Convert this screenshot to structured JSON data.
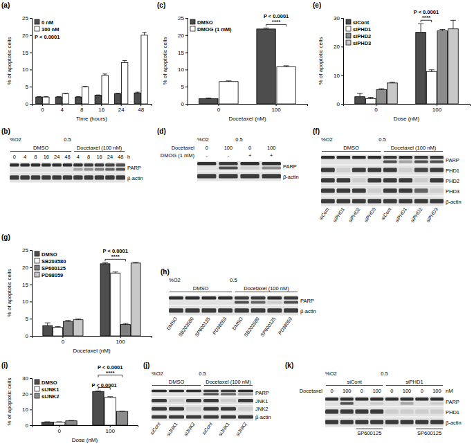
{
  "chart_data": [
    {
      "type": "bar",
      "panel": "(a)",
      "y_label": "% of apoptotic cells",
      "x_label": "Time (hours)",
      "categories": [
        0,
        4,
        8,
        16,
        24,
        48
      ],
      "series": [
        {
          "name": "0 nM",
          "color": "#4d4d4d",
          "values": [
            2,
            2,
            2,
            2.5,
            3,
            3.2
          ],
          "errors": [
            0.1,
            0.1,
            0.1,
            0.1,
            0.1,
            0.2
          ]
        },
        {
          "name": "100 nM",
          "color": "#ffffff",
          "values": [
            2,
            3,
            5,
            8.3,
            12,
            20
          ],
          "errors": [
            0.1,
            0.1,
            0.1,
            0.4,
            0.6,
            0.8
          ]
        }
      ],
      "ylim": [
        0,
        25
      ],
      "yticks": [
        0,
        5,
        10,
        15,
        20,
        25
      ],
      "legend": "top-left",
      "annotation": "P < 0.0001"
    },
    {
      "type": "bar",
      "panel": "(c)",
      "y_label": "% of apoptotic cells",
      "x_label": "Docetaxel (nM)",
      "categories": [
        0,
        100
      ],
      "series": [
        {
          "name": "DMSO",
          "color": "#4d4d4d",
          "values": [
            1.5,
            21.8
          ],
          "errors": [
            0.2,
            0.3
          ]
        },
        {
          "name": "DMOG (1 mM)",
          "color": "#ffffff",
          "values": [
            6.5,
            10.8
          ],
          "errors": [
            0.2,
            0.3
          ]
        }
      ],
      "ylim": [
        0,
        25
      ],
      "yticks": [
        0,
        5,
        10,
        15,
        20,
        25
      ],
      "legend": "top-left",
      "comparisons": [
        {
          "series": [
            "DMSO",
            "DMOG (1 mM)"
          ],
          "label": "P < 0.0001",
          "stars": "****"
        }
      ]
    },
    {
      "type": "bar",
      "panel": "(e)",
      "y_label": "% of apoptotic cells",
      "x_label": "Dose (nM)",
      "categories": [
        0,
        100
      ],
      "series": [
        {
          "name": "siCont",
          "color": "#4d4d4d",
          "values": [
            2.5,
            25
          ],
          "errors": [
            1.2,
            3
          ]
        },
        {
          "name": "siPHD1",
          "color": "#ffffff",
          "values": [
            1.8,
            11.3
          ],
          "errors": [
            0.5,
            0.6
          ]
        },
        {
          "name": "siPHD2",
          "color": "#8c8c8c",
          "values": [
            5,
            25.5
          ],
          "errors": [
            0.3,
            0.5
          ]
        },
        {
          "name": "siPHD3",
          "color": "#c8c8c8",
          "values": [
            7.3,
            26.2
          ],
          "errors": [
            0.3,
            3
          ]
        }
      ],
      "ylim": [
        0,
        30
      ],
      "yticks": [
        0,
        10,
        20,
        30
      ],
      "legend": "top-left",
      "comparisons": [
        {
          "series": [
            "siCont",
            "siPHD1"
          ],
          "label": "P < 0.0001",
          "stars": "****"
        }
      ]
    },
    {
      "type": "bar",
      "panel": "(g)",
      "y_label": "% of apoptotic cells",
      "x_label": "Docetaxel (nM)",
      "categories": [
        0,
        100
      ],
      "series": [
        {
          "name": "DMSO",
          "color": "#4d4d4d",
          "values": [
            3,
            21
          ],
          "errors": [
            0.8,
            0.3
          ]
        },
        {
          "name": "SB203580",
          "color": "#ffffff",
          "values": [
            2.5,
            18.3
          ],
          "errors": [
            0.2,
            0.3
          ]
        },
        {
          "name": "SP600125",
          "color": "#7f7f7f",
          "values": [
            4.2,
            3.3
          ],
          "errors": [
            0.3,
            0.3
          ]
        },
        {
          "name": "PD98059",
          "color": "#c8c8c8",
          "values": [
            4.7,
            21.2
          ],
          "errors": [
            0.2,
            0.2
          ]
        }
      ],
      "ylim": [
        0,
        25
      ],
      "yticks": [
        0,
        5,
        10,
        15,
        20,
        25
      ],
      "legend": "top-left",
      "comparisons": [
        {
          "series": [
            "DMSO",
            "SP600125"
          ],
          "label": "P < 0.0001",
          "stars": "****"
        }
      ]
    },
    {
      "type": "bar",
      "panel": "(i)",
      "y_label": "% of apoptotic cells",
      "x_label": "Dose (nM)",
      "categories": [
        0,
        100
      ],
      "series": [
        {
          "name": "DMSO",
          "color": "#4d4d4d",
          "values": [
            2,
            21.5
          ],
          "errors": [
            0.2,
            0.3
          ]
        },
        {
          "name": "siJNK1",
          "color": "#ffffff",
          "values": [
            2,
            17.7
          ],
          "errors": [
            0.2,
            0.5
          ]
        },
        {
          "name": "siJNK2",
          "color": "#8c8c8c",
          "values": [
            2.8,
            8.8
          ],
          "errors": [
            0.2,
            0.2
          ]
        }
      ],
      "ylim": [
        0,
        30
      ],
      "yticks": [
        0,
        10,
        20,
        30
      ],
      "legend": "top-left",
      "comparisons": [
        {
          "series": [
            "DMSO",
            "siJNK1"
          ],
          "label": "P < 0.0001"
        },
        {
          "series": [
            "DMSO",
            "siJNK2"
          ],
          "label": "P < 0.0001",
          "stars": "****"
        }
      ]
    }
  ],
  "blots": [
    {
      "panel": "(b)",
      "o2_label": "%O2",
      "o2_value": "0.5",
      "groups": [
        {
          "label": "DMSO",
          "lanes": 6
        },
        {
          "label": "Docetaxel (100 nM)",
          "lanes": 5
        }
      ],
      "lane_labels": [
        {
          "values": [
            "0",
            "4",
            "8",
            "16",
            "24",
            "48",
            "4",
            "8",
            "16",
            "24",
            "48"
          ],
          "unit": "h"
        }
      ],
      "rows": [
        {
          "protein": "PARP",
          "bands": [
            0.85,
            0.85,
            0.85,
            0.85,
            0.85,
            0.85,
            0.85,
            0.8,
            0.8,
            0.75,
            0.7
          ],
          "cleaved": [
            0,
            0,
            0,
            0,
            0,
            0,
            0.3,
            0.4,
            0.5,
            0.6,
            0.7
          ]
        },
        {
          "protein": "β-actin",
          "bands": [
            0.8,
            0.8,
            0.8,
            0.8,
            0.8,
            0.8,
            0.8,
            0.8,
            0.8,
            0.8,
            0.8
          ]
        }
      ]
    },
    {
      "panel": "(d)",
      "o2_label": "%O2",
      "o2_value": "0.5",
      "lane_labels": [
        {
          "label": "Docetaxel",
          "values": [
            "0",
            "100",
            "0",
            "100"
          ]
        },
        {
          "label": "DMOG (1 mM)",
          "values": [
            "-",
            "-",
            "+",
            "+"
          ]
        }
      ],
      "rows": [
        {
          "protein": "PARP",
          "bands": [
            0.85,
            0.8,
            0.85,
            0.85
          ],
          "cleaved": [
            0,
            0.7,
            0.1,
            0.4
          ]
        },
        {
          "protein": "β-actin",
          "bands": [
            0.8,
            0.8,
            0.8,
            0.8
          ]
        }
      ]
    },
    {
      "panel": "(f)",
      "o2_label": "%O2",
      "o2_value": "0.5",
      "groups": [
        {
          "label": "DMSO",
          "lanes": 4
        },
        {
          "label": "Docetaxel (100 nM)",
          "lanes": 4
        }
      ],
      "rows": [
        {
          "protein": "PARP",
          "bands": [
            0.85,
            0.85,
            0.85,
            0.85,
            0.8,
            0.85,
            0.8,
            0.8
          ],
          "cleaved": [
            0,
            0,
            0,
            0,
            0.7,
            0.3,
            0.7,
            0.7
          ]
        },
        {
          "protein": "PHD1",
          "bands": [
            0.8,
            0.1,
            0.8,
            0.8,
            0.8,
            0.1,
            0.75,
            0.8
          ]
        },
        {
          "protein": "PHD2",
          "bands": [
            0.8,
            0.8,
            0.1,
            0.8,
            0.8,
            0.8,
            0.1,
            0.8
          ]
        },
        {
          "protein": "PHD3",
          "bands": [
            0.8,
            0.8,
            0.8,
            0.1,
            0.8,
            0.8,
            0.6,
            0.1
          ]
        },
        {
          "protein": "β-actin",
          "bands": [
            0.8,
            0.8,
            0.8,
            0.8,
            0.8,
            0.8,
            0.8,
            0.8
          ]
        }
      ],
      "lane_names": [
        "siCont",
        "siPHD1",
        "siPHD2",
        "siPHD3",
        "siCont",
        "siPHD1",
        "siPHD2",
        "siPHD3"
      ]
    },
    {
      "panel": "(h)",
      "o2_label": "%O2",
      "o2_value": "0.5",
      "groups": [
        {
          "label": "DMSO",
          "lanes": 4
        },
        {
          "label": "Docetaxel (100 nM)",
          "lanes": 4
        }
      ],
      "rows": [
        {
          "protein": "PARP",
          "bands": [
            0.85,
            0.85,
            0.85,
            0.85,
            0.8,
            0.8,
            0.85,
            0.8
          ],
          "cleaved": [
            0,
            0,
            0,
            0,
            0.7,
            0.6,
            0.1,
            0.7
          ]
        },
        {
          "protein": "β-actin",
          "bands": [
            0.8,
            0.8,
            0.8,
            0.8,
            0.8,
            0.8,
            0.8,
            0.8
          ]
        }
      ],
      "lane_names": [
        "DMSO",
        "SB203580",
        "SP600125",
        "PD98059",
        "DMSO",
        "SB203580",
        "SP600125",
        "PD98059"
      ]
    },
    {
      "panel": "(j)",
      "o2_label": "%O2",
      "o2_value": "0.5",
      "groups": [
        {
          "label": "DMSO",
          "lanes": 3
        },
        {
          "label": "Docetaxel (100 nM)",
          "lanes": 3
        }
      ],
      "rows": [
        {
          "protein": "PARP",
          "bands": [
            0.85,
            0.85,
            0.85,
            0.8,
            0.8,
            0.85
          ],
          "cleaved": [
            0,
            0,
            0,
            0.7,
            0.6,
            0.3
          ]
        },
        {
          "protein": "JNK1",
          "bands": [
            0.8,
            0.1,
            0.8,
            0.8,
            0.1,
            0.8
          ]
        },
        {
          "protein": "JNK2",
          "bands": [
            0.8,
            0.8,
            0.1,
            0.8,
            0.8,
            0.1
          ]
        },
        {
          "protein": "β-actin",
          "bands": [
            0.8,
            0.8,
            0.8,
            0.8,
            0.8,
            0.8
          ]
        }
      ],
      "lane_names": [
        "siCont",
        "siJNK1",
        "siJNK2",
        "siCont",
        "siJNK1",
        "siJNK2"
      ]
    },
    {
      "panel": "(k)",
      "o2_label": "%O2",
      "o2_value": "0.5",
      "groups": [
        {
          "label": "siCont",
          "lanes": 4
        },
        {
          "label": "siPHD1",
          "lanes": 4
        }
      ],
      "lane_labels": [
        {
          "label": "Docetaxel",
          "values": [
            "0",
            "100",
            "0",
            "100",
            "0",
            "100",
            "0",
            "100"
          ],
          "unit": "nM"
        }
      ],
      "rows": [
        {
          "protein": "PARP",
          "bands": [
            0.85,
            0.85,
            0.85,
            0.85,
            0.85,
            0.85,
            0.85,
            0.85
          ],
          "cleaved": [
            0,
            0.7,
            0,
            0.1,
            0,
            0.3,
            0,
            0.1
          ]
        },
        {
          "protein": "PHD1",
          "bands": [
            0.8,
            0.8,
            0.8,
            0.8,
            0.1,
            0.1,
            0.1,
            0.1
          ]
        },
        {
          "protein": "β-actin",
          "bands": [
            0.8,
            0.8,
            0.8,
            0.8,
            0.8,
            0.8,
            0.8,
            0.8
          ]
        }
      ],
      "bottom_groups": [
        {
          "label": null,
          "lanes": 2
        },
        {
          "label": "SP600125",
          "lanes": 2
        },
        {
          "label": null,
          "lanes": 2
        },
        {
          "label": "SP600125",
          "lanes": 2
        }
      ]
    }
  ]
}
